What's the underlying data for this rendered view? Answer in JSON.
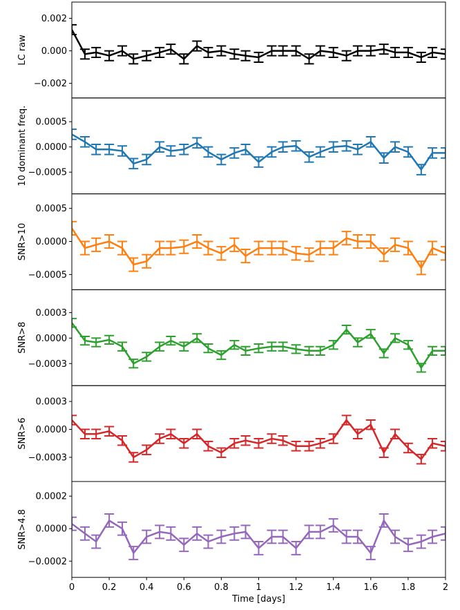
{
  "chart_data": [
    {
      "type": "line",
      "ylabel": "LC raw",
      "color": "#000000",
      "error": 0.0003,
      "x": [
        0,
        0.07,
        0.13,
        0.2,
        0.27,
        0.33,
        0.4,
        0.47,
        0.53,
        0.6,
        0.67,
        0.73,
        0.8,
        0.87,
        0.93,
        1.0,
        1.07,
        1.13,
        1.2,
        1.27,
        1.33,
        1.4,
        1.47,
        1.53,
        1.6,
        1.67,
        1.73,
        1.8,
        1.87,
        1.93,
        2.0
      ],
      "values": [
        0.0013,
        -0.0002,
        -0.0001,
        -0.0003,
        0.0,
        -0.0005,
        -0.0003,
        -0.0001,
        0.0001,
        -0.0005,
        0.0003,
        -0.0001,
        0.0,
        -0.0002,
        -0.0003,
        -0.0004,
        0.0,
        0.0,
        0.0,
        -0.0005,
        0.0,
        -0.0001,
        -0.0003,
        0.0,
        0.0,
        0.0001,
        -0.0001,
        -0.0001,
        -0.0004,
        -0.0001,
        -0.0002
      ],
      "xlim": [
        0,
        2
      ],
      "ylim": [
        -0.0029,
        0.003
      ],
      "yticks": [
        {
          "value": -0.002,
          "label": "−0.002"
        },
        {
          "value": 0,
          "label": "0.000"
        },
        0.002
      ]
    },
    {
      "type": "line",
      "ylabel": "10 dominant freq.",
      "color": "#1f77b4",
      "error": 0.0001,
      "x": [
        0,
        0.07,
        0.13,
        0.2,
        0.27,
        0.33,
        0.4,
        0.47,
        0.53,
        0.6,
        0.67,
        0.73,
        0.8,
        0.87,
        0.93,
        1.0,
        1.07,
        1.13,
        1.2,
        1.27,
        1.33,
        1.4,
        1.47,
        1.53,
        1.6,
        1.67,
        1.73,
        1.8,
        1.87,
        1.93,
        2.0
      ],
      "values": [
        0.00025,
        0.0001,
        -5e-05,
        -5e-05,
        -8e-05,
        -0.00033,
        -0.00025,
        0.0,
        -8e-05,
        -5e-05,
        8e-05,
        -0.0001,
        -0.00025,
        -0.00012,
        -5e-05,
        -0.0003,
        -0.0001,
        0.0,
        2e-05,
        -0.0002,
        -0.0001,
        0.0,
        2e-05,
        -5e-05,
        0.0001,
        -0.00022,
        0.0,
        -0.0001,
        -0.00045,
        -0.00012,
        -0.00012
      ],
      "xlim": [
        0,
        2
      ],
      "ylim": [
        -0.00093,
        0.00097
      ],
      "yticks": [
        {
          "value": -0.0005,
          "label": "−0.0005"
        },
        {
          "value": 0,
          "label": "0.0000"
        },
        0.0005
      ]
    },
    {
      "type": "line",
      "ylabel": "SNR>10",
      "color": "#ff7f0e",
      "error": 0.0001,
      "x": [
        0,
        0.07,
        0.13,
        0.2,
        0.27,
        0.33,
        0.4,
        0.47,
        0.53,
        0.6,
        0.67,
        0.73,
        0.8,
        0.87,
        0.93,
        1.0,
        1.07,
        1.13,
        1.2,
        1.27,
        1.33,
        1.4,
        1.47,
        1.53,
        1.6,
        1.67,
        1.73,
        1.8,
        1.87,
        1.93,
        2.0
      ],
      "values": [
        0.0002,
        -0.0001,
        -5e-05,
        0.0,
        -0.0001,
        -0.00035,
        -0.0003,
        -0.0001,
        -0.0001,
        -8e-05,
        0.0,
        -0.0001,
        -0.00018,
        -5e-05,
        -0.00022,
        -0.0001,
        -0.0001,
        -0.0001,
        -0.00018,
        -0.0002,
        -0.0001,
        -0.0001,
        5e-05,
        0.0,
        0.0,
        -0.0002,
        -5e-05,
        -0.0001,
        -0.0004,
        -0.0001,
        -0.00018
      ],
      "xlim": [
        0,
        2
      ],
      "ylim": [
        -0.00073,
        0.00072
      ],
      "yticks": [
        {
          "value": -0.0005,
          "label": "−0.0005"
        },
        {
          "value": 0,
          "label": "0.0000"
        },
        0.0005
      ]
    },
    {
      "type": "line",
      "ylabel": "SNR>8",
      "color": "#2ca02c",
      "error": 5e-05,
      "x": [
        0,
        0.07,
        0.13,
        0.2,
        0.27,
        0.33,
        0.4,
        0.47,
        0.53,
        0.6,
        0.67,
        0.73,
        0.8,
        0.87,
        0.93,
        1.0,
        1.07,
        1.13,
        1.2,
        1.27,
        1.33,
        1.4,
        1.47,
        1.53,
        1.6,
        1.67,
        1.73,
        1.8,
        1.87,
        1.93,
        2.0
      ],
      "values": [
        0.00018,
        -3e-05,
        -5e-05,
        -2e-05,
        -0.0001,
        -0.0003,
        -0.00022,
        -0.0001,
        -3e-05,
        -0.0001,
        0.0,
        -0.00012,
        -0.0002,
        -8e-05,
        -0.00015,
        -0.00012,
        -0.0001,
        -0.0001,
        -0.00013,
        -0.00015,
        -0.00015,
        -8e-05,
        0.0001,
        -5e-05,
        5e-05,
        -0.00018,
        0.0,
        -8e-05,
        -0.00035,
        -0.00015,
        -0.00015
      ],
      "xlim": [
        0,
        2
      ],
      "ylim": [
        -0.00056,
        0.00057
      ],
      "yticks": [
        {
          "value": -0.0003,
          "label": "−0.0003"
        },
        {
          "value": 0,
          "label": "0.0000"
        },
        0.0003
      ]
    },
    {
      "type": "line",
      "ylabel": "SNR>6",
      "color": "#d62728",
      "error": 5e-05,
      "x": [
        0,
        0.07,
        0.13,
        0.2,
        0.27,
        0.33,
        0.4,
        0.47,
        0.53,
        0.6,
        0.67,
        0.73,
        0.8,
        0.87,
        0.93,
        1.0,
        1.07,
        1.13,
        1.2,
        1.27,
        1.33,
        1.4,
        1.47,
        1.53,
        1.6,
        1.67,
        1.73,
        1.8,
        1.87,
        1.93,
        2.0
      ],
      "values": [
        0.0001,
        -5e-05,
        -5e-05,
        -2e-05,
        -0.00012,
        -0.0003,
        -0.00022,
        -0.0001,
        -5e-05,
        -0.00015,
        -5e-05,
        -0.00018,
        -0.00025,
        -0.00015,
        -0.00012,
        -0.00015,
        -0.0001,
        -0.00012,
        -0.00018,
        -0.00018,
        -0.00015,
        -0.0001,
        0.0001,
        -5e-05,
        5e-05,
        -0.00025,
        -5e-05,
        -0.0002,
        -0.00032,
        -0.00015,
        -0.00018
      ],
      "xlim": [
        0,
        2
      ],
      "ylim": [
        -0.00056,
        0.00047
      ],
      "yticks": [
        {
          "value": -0.0003,
          "label": "−0.0003"
        },
        {
          "value": 0,
          "label": "0.0000"
        },
        0.0003
      ]
    },
    {
      "type": "line",
      "ylabel": "SNR>4.8",
      "color": "#9467bd",
      "error": 4e-05,
      "x": [
        0,
        0.07,
        0.13,
        0.2,
        0.27,
        0.33,
        0.4,
        0.47,
        0.53,
        0.6,
        0.67,
        0.73,
        0.8,
        0.87,
        0.93,
        1.0,
        1.07,
        1.13,
        1.2,
        1.27,
        1.33,
        1.4,
        1.47,
        1.53,
        1.6,
        1.67,
        1.73,
        1.8,
        1.87,
        1.93,
        2.0
      ],
      "values": [
        3e-05,
        -3e-05,
        -8e-05,
        5e-05,
        0.0,
        -0.00015,
        -5e-05,
        -2e-05,
        -3e-05,
        -0.0001,
        -3e-05,
        -8e-05,
        -5e-05,
        -3e-05,
        -2e-05,
        -0.00012,
        -5e-05,
        -5e-05,
        -0.00012,
        -2e-05,
        -2e-05,
        2e-05,
        -5e-05,
        -5e-05,
        -0.00015,
        5e-05,
        -5e-05,
        -0.0001,
        -8e-05,
        -5e-05,
        -3e-05
      ],
      "xlim": [
        0,
        2
      ],
      "ylim": [
        -0.0003,
        0.00029
      ],
      "yticks": [
        {
          "value": -0.0002,
          "label": "−0.0002"
        },
        {
          "value": 0,
          "label": "0.0000"
        },
        0.0002
      ],
      "xlabel": "Time [days]",
      "xticks": [
        0,
        0.2,
        0.4,
        0.6,
        0.8,
        1,
        1.2,
        1.4,
        1.6,
        1.8,
        2
      ]
    }
  ]
}
